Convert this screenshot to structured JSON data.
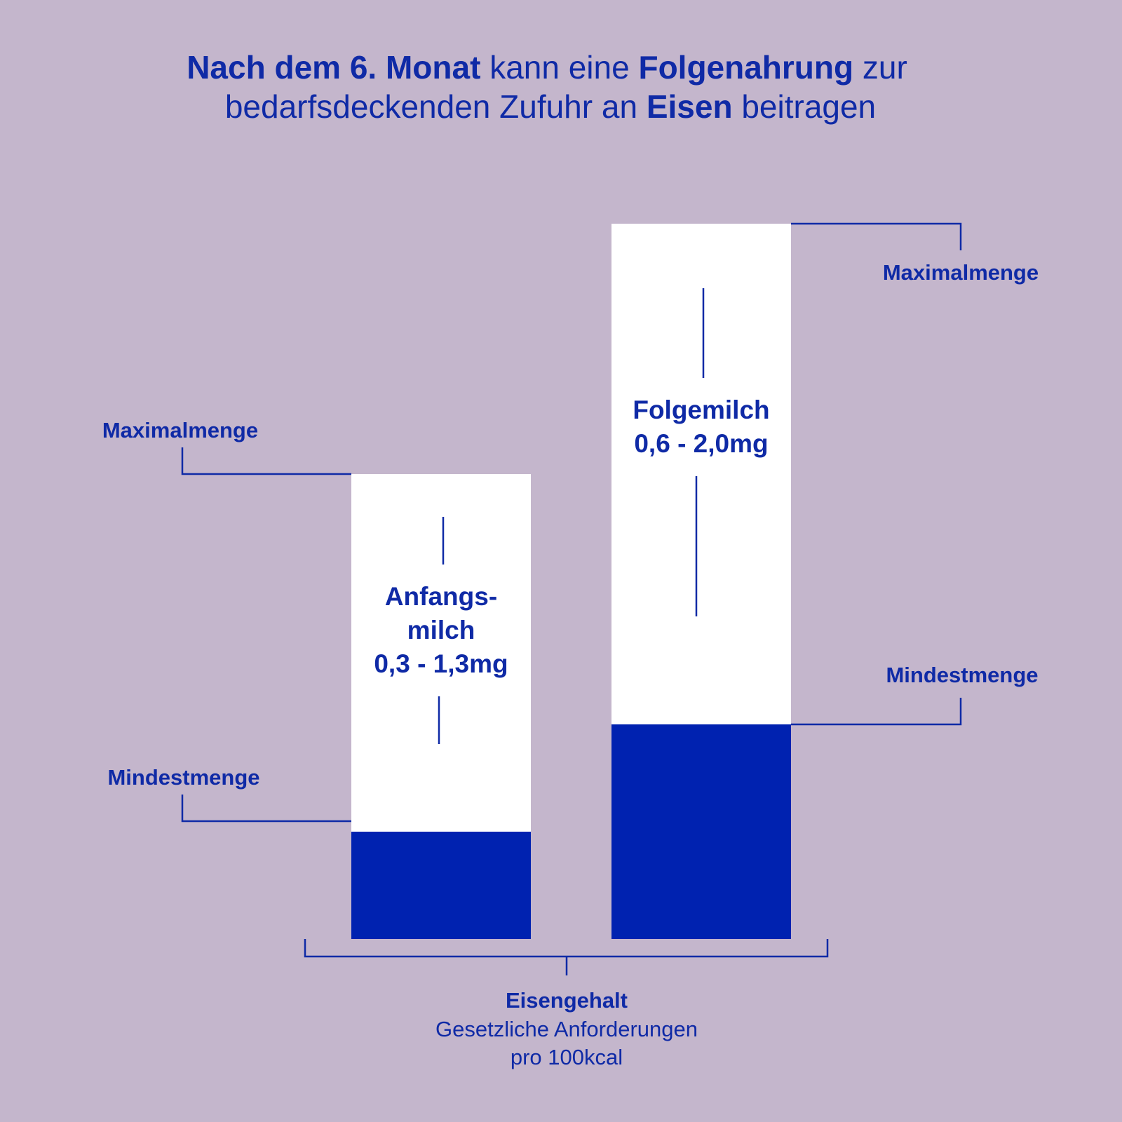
{
  "chart_data": {
    "type": "range_bar",
    "title": [
      "Nach dem 6. Monat",
      "kann eine",
      "Folgenahrung",
      "zur",
      "bedarfsdeckenden Zufuhr an",
      "Eisen",
      "beitragen"
    ],
    "categories": [
      "Anfangs-milch",
      "Folgemilch"
    ],
    "range_labels": [
      "0,3 - 1,3mg",
      "0,6 - 2,0mg"
    ],
    "series": [
      {
        "name": "Mindestmenge",
        "color": "#0022b0",
        "values": [
          0.3,
          0.6
        ]
      },
      {
        "name": "Maximalmenge",
        "color": "#ffffff",
        "values": [
          1.3,
          2.0
        ]
      }
    ],
    "x_label": "Eisengehalt",
    "x_label_note": [
      "Gesetzliche Anforderungen",
      "pro 100kcal"
    ]
  }
}
